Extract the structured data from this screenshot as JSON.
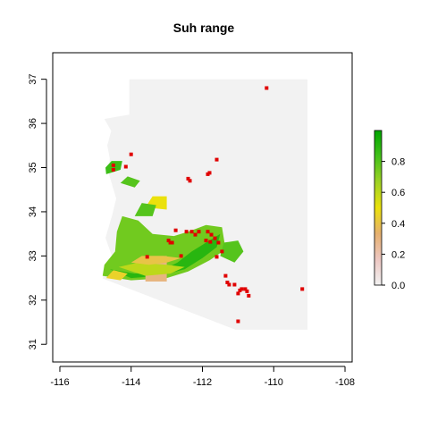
{
  "chart_data": {
    "type": "heatmap",
    "title": "Suh range",
    "xlabel": "",
    "ylabel": "",
    "xlim": [
      -116.2,
      -107.8
    ],
    "ylim": [
      30.6,
      37.6
    ],
    "x_ticks": [
      -116,
      -114,
      -112,
      -110,
      -108
    ],
    "x_tick_labels": [
      "-116",
      "-114",
      "-112",
      "-110",
      "-108"
    ],
    "y_ticks": [
      31,
      32,
      33,
      34,
      35,
      36,
      37
    ],
    "y_tick_labels": [
      "31",
      "32",
      "33",
      "34",
      "35",
      "36",
      "37"
    ],
    "grid": false,
    "colorbar": {
      "placement": "right",
      "range": [
        0.0,
        1.0
      ],
      "ticks": [
        0.0,
        0.2,
        0.4,
        0.6,
        0.8
      ],
      "tick_labels": [
        "0.0",
        "0.2",
        "0.4",
        "0.6",
        "0.8"
      ],
      "colors": [
        "#f2f2f2",
        "#edc7c2",
        "#e6b06f",
        "#ebe10c",
        "#9fd224",
        "#43c11a",
        "#00a600"
      ]
    },
    "state_region": {
      "fill": "#f2f2f2",
      "outline": [
        [
          -114.05,
          37.0
        ],
        [
          -109.05,
          37.0
        ],
        [
          -109.05,
          31.33
        ],
        [
          -111.07,
          31.33
        ],
        [
          -114.8,
          32.49
        ],
        [
          -114.72,
          32.72
        ],
        [
          -114.47,
          32.84
        ],
        [
          -114.72,
          33.41
        ],
        [
          -114.53,
          33.93
        ],
        [
          -114.42,
          34.3
        ],
        [
          -114.63,
          34.87
        ],
        [
          -114.6,
          35.21
        ],
        [
          -114.67,
          35.5
        ],
        [
          -114.56,
          35.83
        ],
        [
          -114.75,
          36.1
        ],
        [
          -114.05,
          36.2
        ]
      ]
    },
    "suitability_patches": [
      {
        "value": 0.75,
        "outline": [
          [
            -114.8,
            32.55
          ],
          [
            -114.0,
            32.45
          ],
          [
            -113.0,
            32.5
          ],
          [
            -112.4,
            32.65
          ],
          [
            -111.8,
            32.9
          ],
          [
            -111.35,
            33.15
          ],
          [
            -111.45,
            33.65
          ],
          [
            -111.9,
            33.7
          ],
          [
            -112.4,
            33.55
          ],
          [
            -112.8,
            33.45
          ],
          [
            -113.4,
            33.5
          ],
          [
            -113.8,
            33.8
          ],
          [
            -114.25,
            33.9
          ],
          [
            -114.4,
            33.55
          ],
          [
            -114.45,
            33.1
          ],
          [
            -114.75,
            32.8
          ]
        ]
      },
      {
        "value": 0.9,
        "outline": [
          [
            -114.6,
            32.7
          ],
          [
            -113.9,
            32.6
          ],
          [
            -113.2,
            32.65
          ],
          [
            -112.7,
            32.85
          ],
          [
            -112.3,
            33.1
          ],
          [
            -111.9,
            33.3
          ],
          [
            -111.5,
            33.5
          ],
          [
            -111.6,
            33.2
          ],
          [
            -112.0,
            32.95
          ],
          [
            -112.5,
            32.7
          ],
          [
            -113.2,
            32.55
          ],
          [
            -114.0,
            32.5
          ]
        ]
      },
      {
        "value": 0.3,
        "outline": [
          [
            -113.6,
            32.42
          ],
          [
            -113.0,
            32.42
          ],
          [
            -113.0,
            33.0
          ],
          [
            -113.6,
            33.0
          ]
        ]
      },
      {
        "value": 0.6,
        "outline": [
          [
            -114.35,
            32.75
          ],
          [
            -113.6,
            32.55
          ],
          [
            -112.9,
            32.6
          ],
          [
            -112.5,
            32.75
          ],
          [
            -113.0,
            32.8
          ],
          [
            -113.8,
            32.85
          ]
        ]
      },
      {
        "value": 0.4,
        "outline": [
          [
            -114.0,
            32.85
          ],
          [
            -113.5,
            32.8
          ],
          [
            -113.0,
            32.85
          ],
          [
            -112.6,
            32.95
          ],
          [
            -113.1,
            33.0
          ],
          [
            -113.7,
            33.0
          ]
        ]
      },
      {
        "value": 0.45,
        "outline": [
          [
            -114.7,
            32.5
          ],
          [
            -114.3,
            32.45
          ],
          [
            -114.1,
            32.6
          ],
          [
            -114.5,
            32.68
          ]
        ]
      },
      {
        "value": 0.5,
        "outline": [
          [
            -113.6,
            34.1
          ],
          [
            -113.0,
            34.05
          ],
          [
            -113.0,
            34.35
          ],
          [
            -113.4,
            34.35
          ]
        ]
      },
      {
        "value": 0.8,
        "outline": [
          [
            -113.9,
            33.9
          ],
          [
            -113.4,
            33.9
          ],
          [
            -113.3,
            34.15
          ],
          [
            -113.7,
            34.2
          ]
        ]
      },
      {
        "value": 0.85,
        "outline": [
          [
            -114.7,
            34.85
          ],
          [
            -114.3,
            34.95
          ],
          [
            -114.25,
            35.15
          ],
          [
            -114.55,
            35.15
          ],
          [
            -114.72,
            35.0
          ]
        ]
      },
      {
        "value": 0.8,
        "outline": [
          [
            -114.3,
            34.65
          ],
          [
            -113.9,
            34.55
          ],
          [
            -113.75,
            34.7
          ],
          [
            -114.1,
            34.8
          ]
        ]
      },
      {
        "value": 0.8,
        "outline": [
          [
            -111.5,
            33.0
          ],
          [
            -111.1,
            32.85
          ],
          [
            -110.85,
            33.1
          ],
          [
            -111.0,
            33.35
          ],
          [
            -111.4,
            33.3
          ]
        ]
      }
    ],
    "occurrences": [
      [
        -110.2,
        36.8
      ],
      [
        -114.0,
        35.3
      ],
      [
        -114.5,
        35.05
      ],
      [
        -114.5,
        34.95
      ],
      [
        -114.15,
        35.02
      ],
      [
        -111.6,
        35.18
      ],
      [
        -111.85,
        34.85
      ],
      [
        -111.8,
        34.88
      ],
      [
        -112.4,
        34.75
      ],
      [
        -112.35,
        34.7
      ],
      [
        -112.75,
        33.58
      ],
      [
        -112.45,
        33.55
      ],
      [
        -112.3,
        33.55
      ],
      [
        -112.1,
        33.55
      ],
      [
        -111.85,
        33.55
      ],
      [
        -111.75,
        33.48
      ],
      [
        -111.9,
        33.35
      ],
      [
        -111.78,
        33.32
      ],
      [
        -111.55,
        33.3
      ],
      [
        -111.65,
        33.4
      ],
      [
        -112.95,
        33.35
      ],
      [
        -112.85,
        33.3
      ],
      [
        -112.9,
        33.3
      ],
      [
        -113.55,
        32.98
      ],
      [
        -112.6,
        33.0
      ],
      [
        -111.35,
        32.55
      ],
      [
        -111.3,
        32.4
      ],
      [
        -111.25,
        32.35
      ],
      [
        -111.1,
        32.35
      ],
      [
        -110.95,
        32.22
      ],
      [
        -110.9,
        32.25
      ],
      [
        -110.8,
        32.25
      ],
      [
        -110.75,
        32.2
      ],
      [
        -111.0,
        32.15
      ],
      [
        -110.7,
        32.1
      ],
      [
        -111.0,
        31.52
      ],
      [
        -111.6,
        32.98
      ],
      [
        -109.2,
        32.25
      ],
      [
        -111.45,
        33.1
      ],
      [
        -112.2,
        33.48
      ]
    ],
    "occurrence_color": "#e00000"
  }
}
